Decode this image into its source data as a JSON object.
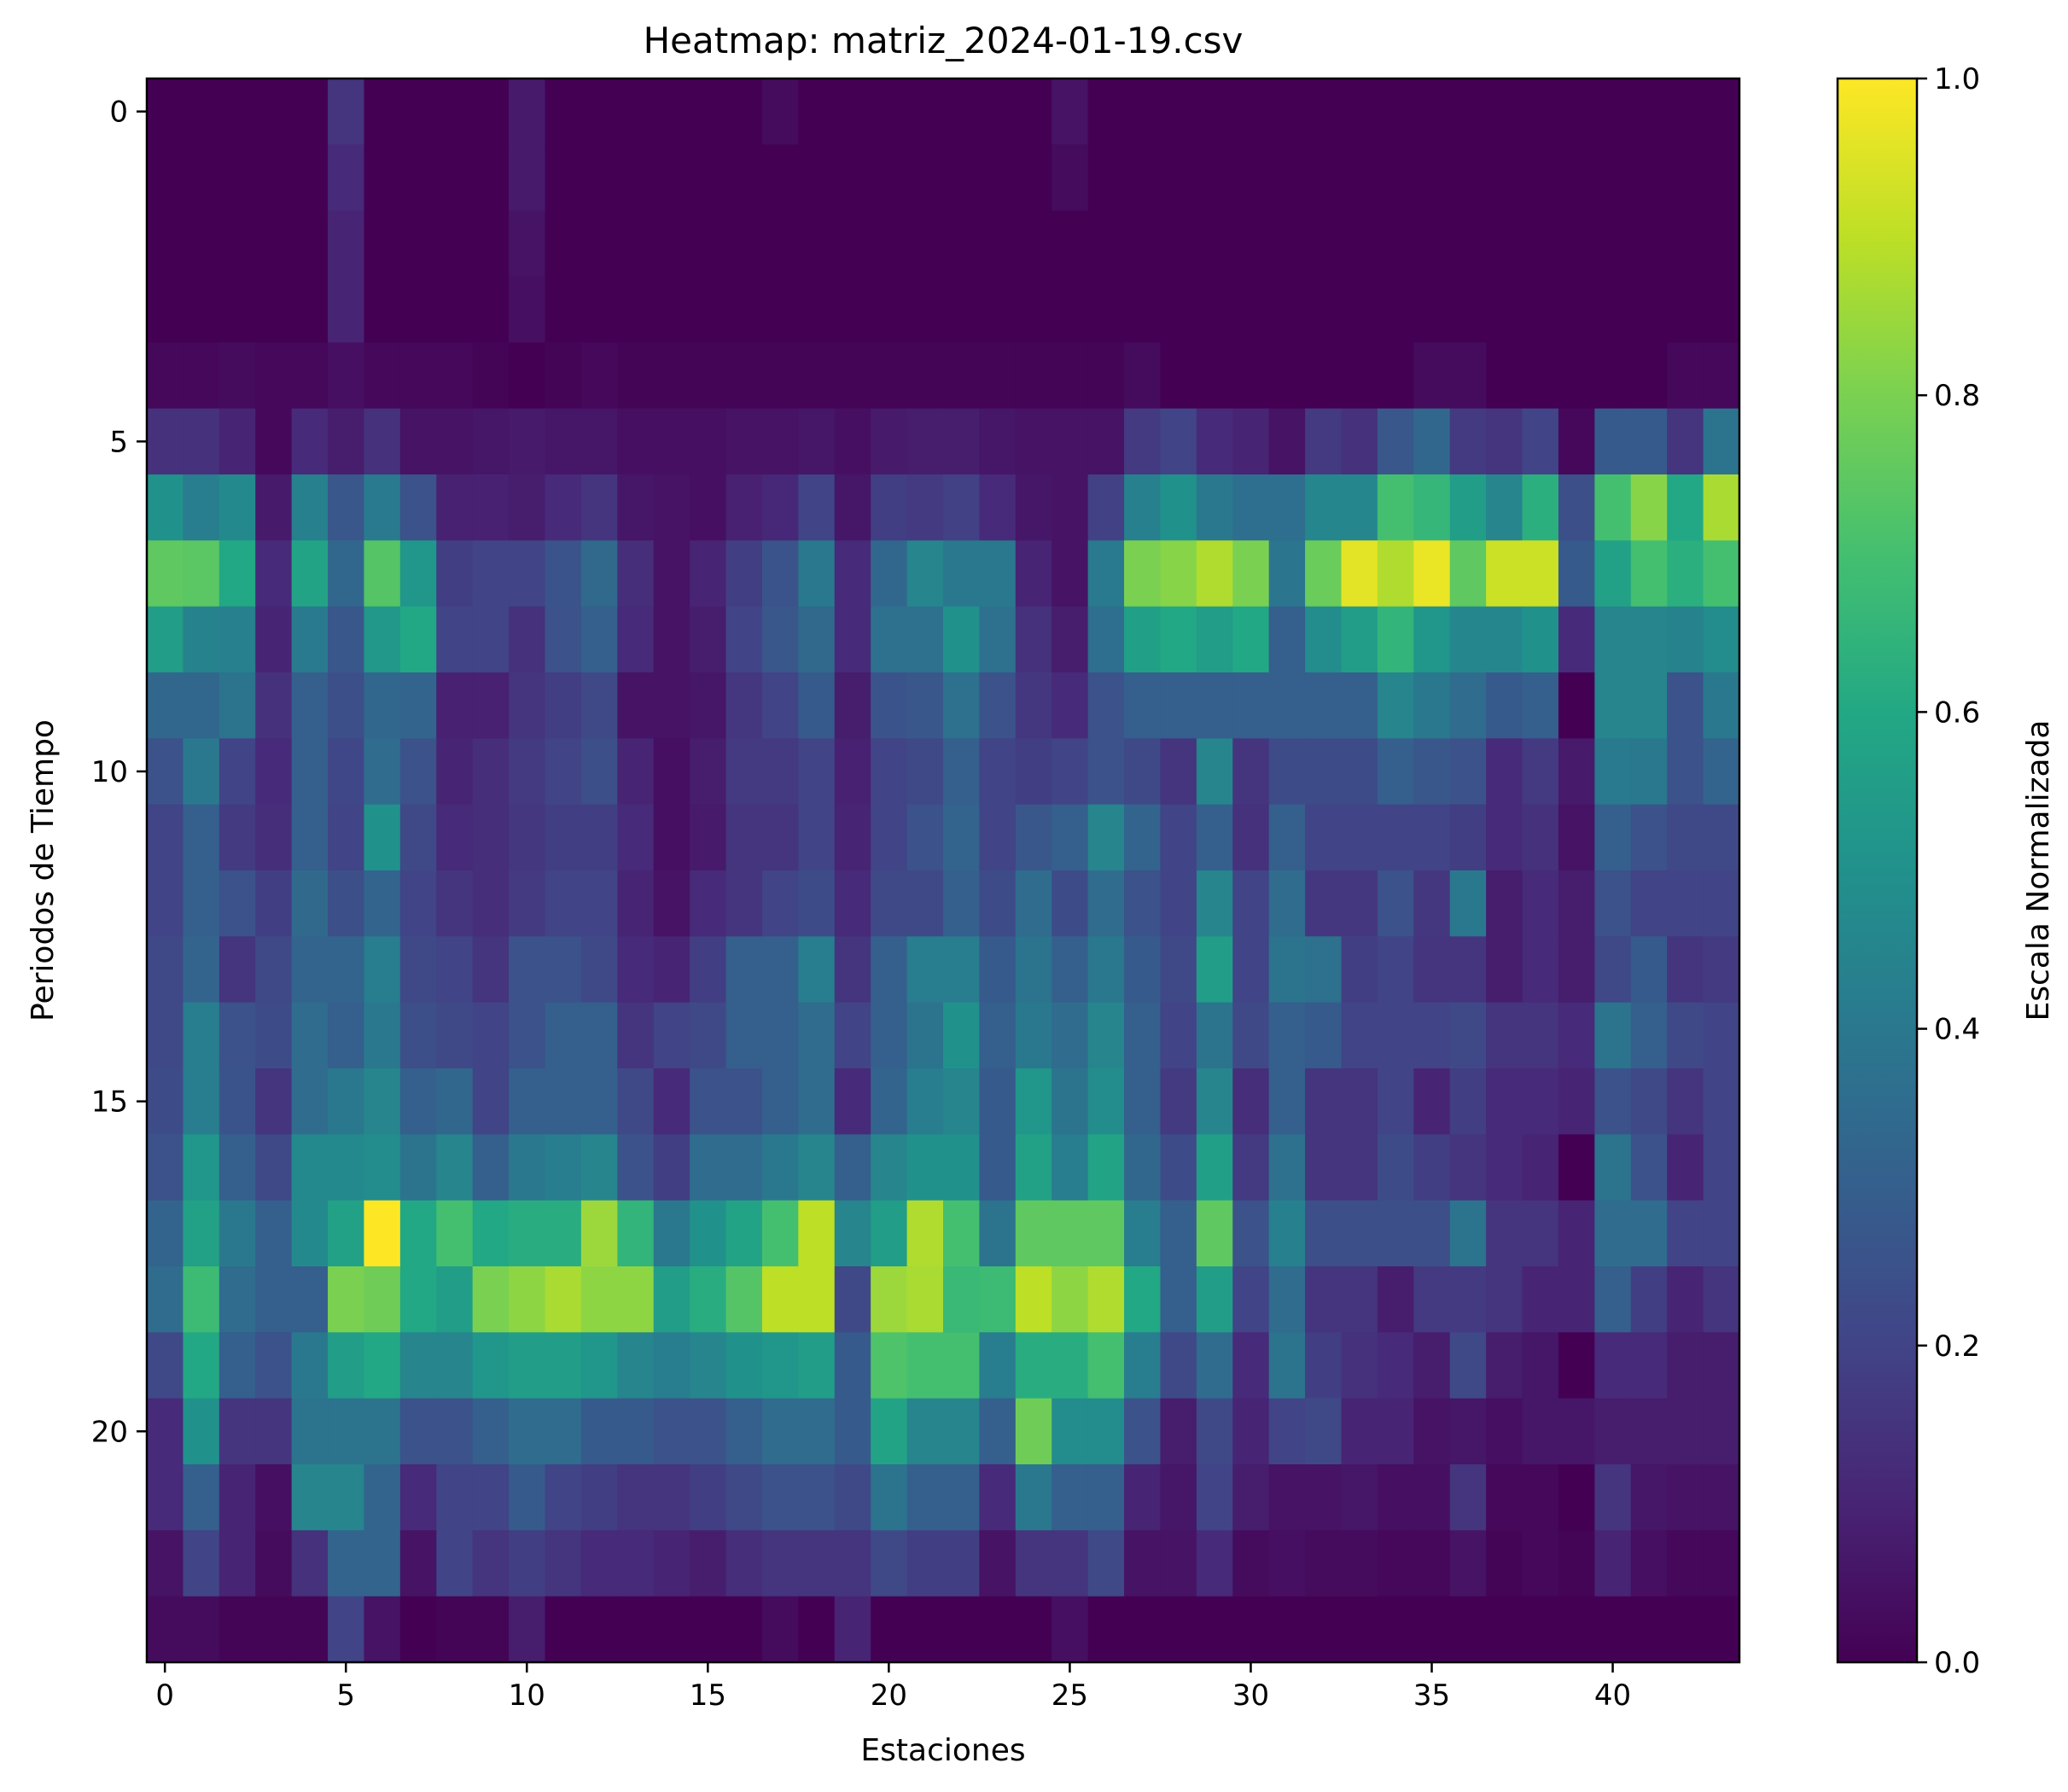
{
  "chart_data": {
    "type": "heatmap",
    "title": "Heatmap: matriz_2024-01-19.csv",
    "xlabel": "Estaciones",
    "ylabel": "Periodos de Tiempo",
    "colorbar_label": "Escala Normalizada",
    "colormap": "viridis",
    "xlim": [
      -0.5,
      43.5
    ],
    "ylim": [
      23.5,
      -0.5
    ],
    "value_range": [
      0.0,
      1.0
    ],
    "x_ticks": [
      "0",
      "5",
      "10",
      "15",
      "20",
      "25",
      "30",
      "35",
      "40"
    ],
    "y_ticks": [
      "0",
      "5",
      "10",
      "15",
      "20"
    ],
    "colorbar_ticks": [
      "0.0",
      "0.2",
      "0.4",
      "0.6",
      "0.8",
      "1.0"
    ],
    "n_stations": 44,
    "n_periods": 24,
    "values": [
      [
        0.0,
        0.0,
        0.0,
        0.0,
        0.0,
        0.15,
        0.0,
        0.0,
        0.0,
        0.0,
        0.07,
        0.0,
        0.0,
        0.0,
        0.0,
        0.0,
        0.0,
        0.03,
        0.0,
        0.0,
        0.0,
        0.0,
        0.0,
        0.0,
        0.0,
        0.05,
        0.0,
        0.0,
        0.0,
        0.0,
        0.0,
        0.0,
        0.0,
        0.0,
        0.0,
        0.0,
        0.0,
        0.0,
        0.0,
        0.0,
        0.0,
        0.0,
        0.0,
        0.0
      ],
      [
        0.0,
        0.0,
        0.0,
        0.0,
        0.0,
        0.12,
        0.0,
        0.0,
        0.0,
        0.0,
        0.07,
        0.0,
        0.0,
        0.0,
        0.0,
        0.0,
        0.0,
        0.0,
        0.0,
        0.0,
        0.0,
        0.0,
        0.0,
        0.0,
        0.0,
        0.03,
        0.0,
        0.0,
        0.0,
        0.0,
        0.0,
        0.0,
        0.0,
        0.0,
        0.0,
        0.0,
        0.0,
        0.0,
        0.0,
        0.0,
        0.0,
        0.0,
        0.0,
        0.0
      ],
      [
        0.0,
        0.0,
        0.0,
        0.0,
        0.0,
        0.1,
        0.0,
        0.0,
        0.0,
        0.0,
        0.05,
        0.0,
        0.0,
        0.0,
        0.0,
        0.0,
        0.0,
        0.0,
        0.0,
        0.0,
        0.0,
        0.0,
        0.0,
        0.0,
        0.0,
        0.0,
        0.0,
        0.0,
        0.0,
        0.0,
        0.0,
        0.0,
        0.0,
        0.0,
        0.0,
        0.0,
        0.0,
        0.0,
        0.0,
        0.0,
        0.0,
        0.0,
        0.0,
        0.0
      ],
      [
        0.0,
        0.0,
        0.0,
        0.0,
        0.0,
        0.1,
        0.0,
        0.0,
        0.0,
        0.0,
        0.04,
        0.0,
        0.0,
        0.0,
        0.0,
        0.0,
        0.0,
        0.0,
        0.0,
        0.0,
        0.0,
        0.0,
        0.0,
        0.0,
        0.0,
        0.0,
        0.0,
        0.0,
        0.0,
        0.0,
        0.0,
        0.0,
        0.0,
        0.0,
        0.0,
        0.0,
        0.0,
        0.0,
        0.0,
        0.0,
        0.0,
        0.0,
        0.0,
        0.0
      ],
      [
        0.02,
        0.02,
        0.03,
        0.02,
        0.02,
        0.04,
        0.02,
        0.02,
        0.02,
        0.01,
        0.0,
        0.01,
        0.02,
        0.01,
        0.01,
        0.01,
        0.01,
        0.01,
        0.01,
        0.01,
        0.01,
        0.01,
        0.01,
        0.01,
        0.01,
        0.01,
        0.01,
        0.03,
        0.0,
        0.0,
        0.0,
        0.0,
        0.0,
        0.0,
        0.0,
        0.03,
        0.03,
        0.0,
        0.0,
        0.0,
        0.0,
        0.0,
        0.02,
        0.02
      ],
      [
        0.14,
        0.14,
        0.1,
        0.02,
        0.12,
        0.08,
        0.14,
        0.05,
        0.05,
        0.06,
        0.07,
        0.06,
        0.06,
        0.04,
        0.04,
        0.04,
        0.05,
        0.05,
        0.06,
        0.04,
        0.07,
        0.08,
        0.08,
        0.06,
        0.05,
        0.05,
        0.05,
        0.17,
        0.2,
        0.12,
        0.1,
        0.05,
        0.17,
        0.14,
        0.27,
        0.33,
        0.17,
        0.15,
        0.2,
        0.02,
        0.28,
        0.28,
        0.15,
        0.38
      ],
      [
        0.5,
        0.42,
        0.47,
        0.07,
        0.43,
        0.27,
        0.41,
        0.25,
        0.09,
        0.09,
        0.08,
        0.12,
        0.15,
        0.06,
        0.05,
        0.04,
        0.09,
        0.11,
        0.2,
        0.06,
        0.18,
        0.17,
        0.19,
        0.12,
        0.06,
        0.05,
        0.19,
        0.43,
        0.5,
        0.4,
        0.36,
        0.36,
        0.46,
        0.46,
        0.7,
        0.66,
        0.55,
        0.45,
        0.63,
        0.24,
        0.7,
        0.82,
        0.6,
        0.87
      ],
      [
        0.75,
        0.74,
        0.6,
        0.12,
        0.58,
        0.33,
        0.73,
        0.52,
        0.18,
        0.2,
        0.2,
        0.26,
        0.34,
        0.13,
        0.05,
        0.1,
        0.18,
        0.26,
        0.4,
        0.12,
        0.33,
        0.45,
        0.4,
        0.4,
        0.1,
        0.05,
        0.41,
        0.8,
        0.82,
        0.88,
        0.8,
        0.39,
        0.77,
        0.96,
        0.88,
        0.97,
        0.75,
        0.92,
        0.92,
        0.28,
        0.57,
        0.7,
        0.63,
        0.7
      ],
      [
        0.55,
        0.44,
        0.43,
        0.1,
        0.41,
        0.27,
        0.53,
        0.6,
        0.2,
        0.2,
        0.14,
        0.25,
        0.3,
        0.12,
        0.05,
        0.08,
        0.2,
        0.27,
        0.34,
        0.12,
        0.37,
        0.37,
        0.5,
        0.37,
        0.14,
        0.08,
        0.36,
        0.56,
        0.6,
        0.55,
        0.6,
        0.3,
        0.48,
        0.55,
        0.65,
        0.52,
        0.46,
        0.46,
        0.5,
        0.12,
        0.45,
        0.45,
        0.44,
        0.48
      ],
      [
        0.33,
        0.33,
        0.38,
        0.14,
        0.3,
        0.24,
        0.33,
        0.32,
        0.09,
        0.09,
        0.15,
        0.18,
        0.22,
        0.05,
        0.05,
        0.06,
        0.16,
        0.2,
        0.28,
        0.08,
        0.26,
        0.27,
        0.37,
        0.25,
        0.16,
        0.12,
        0.25,
        0.3,
        0.3,
        0.3,
        0.3,
        0.3,
        0.3,
        0.3,
        0.45,
        0.4,
        0.35,
        0.28,
        0.3,
        0.0,
        0.45,
        0.45,
        0.25,
        0.4
      ],
      [
        0.25,
        0.4,
        0.2,
        0.12,
        0.3,
        0.21,
        0.35,
        0.25,
        0.1,
        0.13,
        0.17,
        0.2,
        0.24,
        0.1,
        0.04,
        0.08,
        0.17,
        0.17,
        0.2,
        0.09,
        0.2,
        0.22,
        0.3,
        0.2,
        0.18,
        0.2,
        0.25,
        0.22,
        0.15,
        0.45,
        0.15,
        0.23,
        0.23,
        0.23,
        0.3,
        0.27,
        0.25,
        0.12,
        0.17,
        0.07,
        0.41,
        0.4,
        0.25,
        0.32
      ],
      [
        0.2,
        0.3,
        0.17,
        0.13,
        0.3,
        0.2,
        0.5,
        0.22,
        0.12,
        0.13,
        0.16,
        0.18,
        0.18,
        0.12,
        0.04,
        0.07,
        0.15,
        0.15,
        0.2,
        0.1,
        0.2,
        0.25,
        0.32,
        0.2,
        0.27,
        0.3,
        0.45,
        0.32,
        0.2,
        0.3,
        0.14,
        0.3,
        0.2,
        0.2,
        0.2,
        0.2,
        0.18,
        0.12,
        0.14,
        0.05,
        0.3,
        0.25,
        0.22,
        0.22
      ],
      [
        0.2,
        0.3,
        0.25,
        0.18,
        0.34,
        0.24,
        0.32,
        0.2,
        0.15,
        0.13,
        0.17,
        0.2,
        0.2,
        0.1,
        0.05,
        0.12,
        0.15,
        0.2,
        0.23,
        0.12,
        0.22,
        0.22,
        0.3,
        0.23,
        0.35,
        0.23,
        0.35,
        0.25,
        0.2,
        0.45,
        0.2,
        0.35,
        0.16,
        0.16,
        0.25,
        0.16,
        0.4,
        0.08,
        0.12,
        0.08,
        0.25,
        0.2,
        0.2,
        0.2
      ],
      [
        0.22,
        0.32,
        0.15,
        0.22,
        0.32,
        0.32,
        0.42,
        0.22,
        0.2,
        0.15,
        0.25,
        0.25,
        0.22,
        0.12,
        0.1,
        0.18,
        0.3,
        0.3,
        0.42,
        0.15,
        0.3,
        0.42,
        0.42,
        0.28,
        0.38,
        0.3,
        0.4,
        0.28,
        0.22,
        0.55,
        0.2,
        0.38,
        0.37,
        0.18,
        0.2,
        0.15,
        0.15,
        0.08,
        0.12,
        0.08,
        0.22,
        0.28,
        0.15,
        0.17
      ],
      [
        0.22,
        0.42,
        0.25,
        0.23,
        0.35,
        0.3,
        0.4,
        0.24,
        0.22,
        0.2,
        0.25,
        0.3,
        0.3,
        0.15,
        0.2,
        0.22,
        0.3,
        0.3,
        0.35,
        0.2,
        0.3,
        0.38,
        0.5,
        0.3,
        0.4,
        0.35,
        0.45,
        0.3,
        0.2,
        0.38,
        0.22,
        0.3,
        0.28,
        0.2,
        0.2,
        0.2,
        0.22,
        0.15,
        0.15,
        0.12,
        0.38,
        0.3,
        0.22,
        0.2
      ],
      [
        0.23,
        0.42,
        0.26,
        0.15,
        0.35,
        0.4,
        0.45,
        0.3,
        0.33,
        0.2,
        0.3,
        0.3,
        0.3,
        0.22,
        0.12,
        0.25,
        0.25,
        0.3,
        0.35,
        0.12,
        0.32,
        0.42,
        0.45,
        0.28,
        0.52,
        0.38,
        0.48,
        0.3,
        0.17,
        0.45,
        0.13,
        0.3,
        0.15,
        0.15,
        0.2,
        0.1,
        0.18,
        0.12,
        0.12,
        0.1,
        0.25,
        0.22,
        0.15,
        0.2
      ],
      [
        0.25,
        0.52,
        0.3,
        0.22,
        0.47,
        0.47,
        0.48,
        0.38,
        0.45,
        0.3,
        0.4,
        0.42,
        0.45,
        0.25,
        0.18,
        0.35,
        0.35,
        0.4,
        0.45,
        0.3,
        0.45,
        0.5,
        0.5,
        0.28,
        0.57,
        0.42,
        0.58,
        0.33,
        0.23,
        0.56,
        0.17,
        0.37,
        0.15,
        0.15,
        0.23,
        0.18,
        0.15,
        0.12,
        0.1,
        0.0,
        0.38,
        0.25,
        0.1,
        0.2
      ],
      [
        0.32,
        0.57,
        0.4,
        0.3,
        0.47,
        0.57,
        1.0,
        0.6,
        0.7,
        0.6,
        0.62,
        0.62,
        0.85,
        0.65,
        0.4,
        0.5,
        0.58,
        0.7,
        0.9,
        0.45,
        0.55,
        0.88,
        0.7,
        0.38,
        0.75,
        0.75,
        0.75,
        0.42,
        0.3,
        0.75,
        0.25,
        0.43,
        0.24,
        0.24,
        0.24,
        0.24,
        0.38,
        0.15,
        0.15,
        0.1,
        0.35,
        0.35,
        0.2,
        0.2
      ],
      [
        0.35,
        0.68,
        0.35,
        0.3,
        0.3,
        0.8,
        0.78,
        0.6,
        0.55,
        0.8,
        0.83,
        0.87,
        0.83,
        0.83,
        0.55,
        0.62,
        0.73,
        0.9,
        0.9,
        0.22,
        0.85,
        0.87,
        0.67,
        0.68,
        0.9,
        0.83,
        0.88,
        0.6,
        0.3,
        0.55,
        0.2,
        0.35,
        0.15,
        0.15,
        0.08,
        0.17,
        0.17,
        0.15,
        0.1,
        0.1,
        0.3,
        0.18,
        0.1,
        0.15
      ],
      [
        0.22,
        0.6,
        0.3,
        0.25,
        0.4,
        0.55,
        0.6,
        0.45,
        0.45,
        0.52,
        0.55,
        0.55,
        0.52,
        0.45,
        0.42,
        0.45,
        0.5,
        0.52,
        0.55,
        0.28,
        0.72,
        0.7,
        0.7,
        0.42,
        0.62,
        0.62,
        0.7,
        0.42,
        0.22,
        0.35,
        0.12,
        0.38,
        0.18,
        0.14,
        0.12,
        0.08,
        0.22,
        0.08,
        0.06,
        0.0,
        0.12,
        0.12,
        0.08,
        0.08
      ],
      [
        0.12,
        0.5,
        0.15,
        0.15,
        0.38,
        0.38,
        0.38,
        0.25,
        0.25,
        0.3,
        0.35,
        0.35,
        0.28,
        0.28,
        0.25,
        0.25,
        0.3,
        0.35,
        0.35,
        0.28,
        0.58,
        0.45,
        0.45,
        0.3,
        0.78,
        0.48,
        0.48,
        0.25,
        0.08,
        0.22,
        0.1,
        0.2,
        0.22,
        0.1,
        0.1,
        0.05,
        0.06,
        0.04,
        0.06,
        0.06,
        0.08,
        0.08,
        0.08,
        0.08
      ],
      [
        0.12,
        0.3,
        0.1,
        0.04,
        0.45,
        0.45,
        0.32,
        0.12,
        0.2,
        0.2,
        0.28,
        0.2,
        0.18,
        0.15,
        0.15,
        0.18,
        0.22,
        0.25,
        0.25,
        0.22,
        0.38,
        0.3,
        0.3,
        0.12,
        0.4,
        0.3,
        0.3,
        0.1,
        0.06,
        0.2,
        0.08,
        0.05,
        0.05,
        0.06,
        0.04,
        0.04,
        0.15,
        0.02,
        0.02,
        0.0,
        0.15,
        0.06,
        0.05,
        0.05
      ],
      [
        0.05,
        0.2,
        0.1,
        0.03,
        0.14,
        0.32,
        0.32,
        0.05,
        0.2,
        0.15,
        0.18,
        0.15,
        0.12,
        0.12,
        0.1,
        0.08,
        0.13,
        0.15,
        0.15,
        0.15,
        0.22,
        0.18,
        0.18,
        0.05,
        0.15,
        0.15,
        0.22,
        0.05,
        0.05,
        0.12,
        0.03,
        0.04,
        0.03,
        0.03,
        0.02,
        0.02,
        0.05,
        0.01,
        0.02,
        0.01,
        0.1,
        0.04,
        0.02,
        0.02
      ],
      [
        0.03,
        0.03,
        0.01,
        0.01,
        0.01,
        0.2,
        0.05,
        0.0,
        0.01,
        0.01,
        0.08,
        0.0,
        0.0,
        0.0,
        0.0,
        0.0,
        0.0,
        0.03,
        0.0,
        0.1,
        0.0,
        0.0,
        0.0,
        0.0,
        0.0,
        0.04,
        0.0,
        0.0,
        0.0,
        0.0,
        0.0,
        0.0,
        0.0,
        0.0,
        0.0,
        0.0,
        0.0,
        0.0,
        0.0,
        0.0,
        0.0,
        0.0,
        0.0,
        0.0
      ]
    ]
  }
}
